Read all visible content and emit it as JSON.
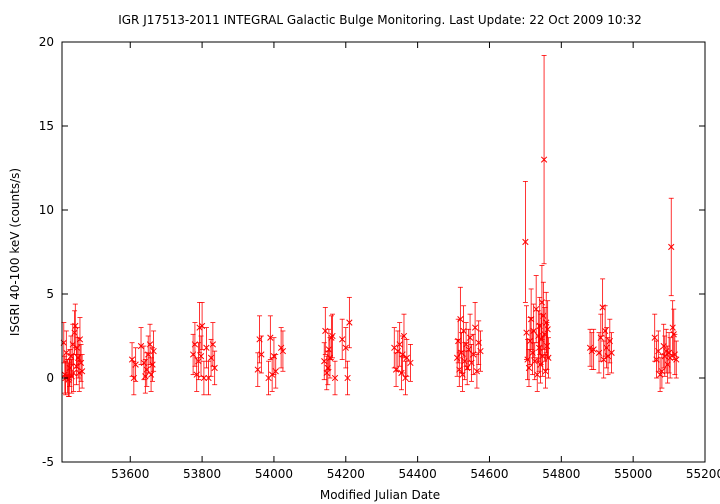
{
  "chart_data": {
    "type": "scatter",
    "title": "IGR J17513-2011   INTEGRAL Galactic Bulge Monitoring.  Last Update: 22 Oct 2009 10:32",
    "xlabel": "Modified Julian Date",
    "ylabel": "ISGRI 40-100 keV (counts/s)",
    "xlim": [
      53410,
      55200
    ],
    "ylim": [
      -5,
      20
    ],
    "xticks": [
      53600,
      53800,
      54000,
      54200,
      54400,
      54600,
      54800,
      55000,
      55200
    ],
    "yticks": [
      -5,
      0,
      5,
      10,
      15,
      20
    ],
    "grid": false,
    "marker": "x",
    "colors": {
      "series": "#ff0000",
      "axes": "#000000"
    },
    "series": [
      {
        "x": [
          53415,
          53418,
          53420,
          53422,
          53425,
          53428,
          53430,
          53432,
          53435,
          53437,
          53440,
          53442,
          53445,
          53447,
          53450,
          53452,
          53455,
          53458,
          53460,
          53463,
          53466,
          53605,
          53610,
          53615,
          53630,
          53638,
          53642,
          53646,
          53650,
          53655,
          53658,
          53662,
          53665,
          53775,
          53780,
          53785,
          53790,
          53793,
          53797,
          53800,
          53805,
          53812,
          53818,
          53825,
          53830,
          53835,
          53955,
          53960,
          53965,
          53985,
          53990,
          53995,
          54000,
          54005,
          54020,
          54025,
          54140,
          54143,
          54147,
          54150,
          54153,
          54156,
          54160,
          54163,
          54170,
          54190,
          54200,
          54205,
          54210,
          54335,
          54340,
          54345,
          54350,
          54355,
          54358,
          54362,
          54366,
          54370,
          54380,
          54510,
          54513,
          54516,
          54519,
          54522,
          54525,
          54528,
          54531,
          54535,
          54538,
          54542,
          54546,
          54550,
          54555,
          54560,
          54565,
          54570,
          54575,
          54700,
          54703,
          54706,
          54710,
          54713,
          54716,
          54720,
          54723,
          54726,
          54730,
          54733,
          54736,
          54738,
          54740,
          54742,
          54744,
          54746,
          54748,
          54750,
          54752,
          54754,
          54756,
          54758,
          54760,
          54762,
          54764,
          54880,
          54885,
          54890,
          54905,
          54910,
          54915,
          54918,
          54922,
          54926,
          54930,
          54935,
          54940,
          55060,
          55065,
          55070,
          55075,
          55080,
          55085,
          55088,
          55092,
          55096,
          55100,
          55103,
          55106,
          55110,
          55113,
          55116,
          55120
        ],
        "y": [
          2.1,
          0.2,
          0.0,
          1.5,
          0.1,
          -0.1,
          0.0,
          0.6,
          1.3,
          0.1,
          2.0,
          0.3,
          2.7,
          3.1,
          0.7,
          1.8,
          1.2,
          0.3,
          2.3,
          0.9,
          0.4,
          1.1,
          0.0,
          0.8,
          1.9,
          0.9,
          0.1,
          0.5,
          1.4,
          2.0,
          0.2,
          0.8,
          1.6,
          1.4,
          2.0,
          0.2,
          1.0,
          3.0,
          1.3,
          3.1,
          0.0,
          1.8,
          0.0,
          1.2,
          2.0,
          0.6,
          0.5,
          2.3,
          1.4,
          0.0,
          2.4,
          0.2,
          1.3,
          0.4,
          1.8,
          1.6,
          1.0,
          2.8,
          0.3,
          0.6,
          1.7,
          1.2,
          2.4,
          2.5,
          0.0,
          2.3,
          1.8,
          0.0,
          3.3,
          1.8,
          0.5,
          1.6,
          2.0,
          0.3,
          1.4,
          2.5,
          0.0,
          1.2,
          0.9,
          1.2,
          2.2,
          0.5,
          3.5,
          1.5,
          0.2,
          2.8,
          1.0,
          2.0,
          0.6,
          1.7,
          2.4,
          0.9,
          1.4,
          3.0,
          0.4,
          2.1,
          1.6,
          8.1,
          2.7,
          1.1,
          0.6,
          2.2,
          3.5,
          1.5,
          2.8,
          1.0,
          4.1,
          0.2,
          2.5,
          1.8,
          3.1,
          0.8,
          2.3,
          4.5,
          1.3,
          3.7,
          13.0,
          2.6,
          0.4,
          3.3,
          1.9,
          2.9,
          1.2,
          1.8,
          1.6,
          1.7,
          1.5,
          2.4,
          4.2,
          1.1,
          2.8,
          1.8,
          1.3,
          2.2,
          1.5,
          2.4,
          1.1,
          1.6,
          0.2,
          0.4,
          1.9,
          1.3,
          1.6,
          0.8,
          1.5,
          1.2,
          7.8,
          3.0,
          2.6,
          1.4,
          1.1
        ],
        "err": [
          1.2,
          1.1,
          1.0,
          1.3,
          1.0,
          1.0,
          1.1,
          1.1,
          1.2,
          1.0,
          1.2,
          1.1,
          1.3,
          1.3,
          1.1,
          1.2,
          1.2,
          1.1,
          1.3,
          1.1,
          1.0,
          1.0,
          1.0,
          1.0,
          1.1,
          1.0,
          1.0,
          1.0,
          1.1,
          1.2,
          1.0,
          1.0,
          1.2,
          1.2,
          1.3,
          1.0,
          1.1,
          1.5,
          1.2,
          1.4,
          1.0,
          1.2,
          1.0,
          1.1,
          1.3,
          1.0,
          1.0,
          1.4,
          1.1,
          1.0,
          1.3,
          1.0,
          1.1,
          1.0,
          1.2,
          1.2,
          1.1,
          1.4,
          1.0,
          1.0,
          1.2,
          1.2,
          1.3,
          1.3,
          1.0,
          1.2,
          1.2,
          1.0,
          1.5,
          1.2,
          1.0,
          1.2,
          1.3,
          1.0,
          1.1,
          1.3,
          1.0,
          1.1,
          1.1,
          1.1,
          1.3,
          1.0,
          1.9,
          1.2,
          1.0,
          1.5,
          1.1,
          1.3,
          1.0,
          1.2,
          1.4,
          1.1,
          1.2,
          1.5,
          1.0,
          1.3,
          1.2,
          3.6,
          1.6,
          1.2,
          1.1,
          1.4,
          1.8,
          1.3,
          1.6,
          1.1,
          2.0,
          1.0,
          1.5,
          1.4,
          1.7,
          1.1,
          1.5,
          2.2,
          1.2,
          2.0,
          6.2,
          1.6,
          1.0,
          1.8,
          1.4,
          1.7,
          1.2,
          1.1,
          1.1,
          1.2,
          1.2,
          1.4,
          1.7,
          1.1,
          1.5,
          1.2,
          1.1,
          1.3,
          1.2,
          1.4,
          1.1,
          1.2,
          1.0,
          1.0,
          1.3,
          1.2,
          1.3,
          1.1,
          1.2,
          1.2,
          2.9,
          1.6,
          1.5,
          1.2,
          1.1
        ]
      }
    ]
  }
}
